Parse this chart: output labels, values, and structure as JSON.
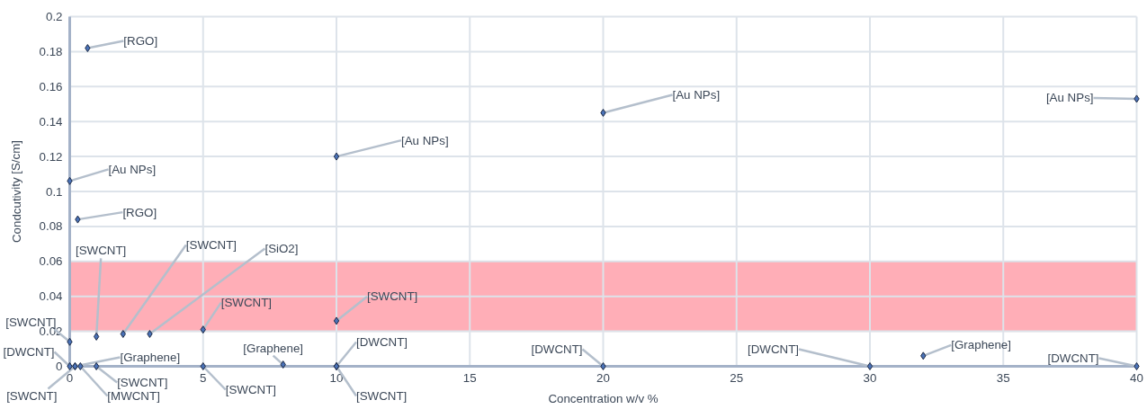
{
  "chart_data": {
    "type": "scatter",
    "xlabel": "Concentration w/v %",
    "ylabel": "Condcutivity [S/cm]",
    "x": [
      0.67,
      0,
      0.3,
      1,
      2,
      3,
      5,
      10,
      10,
      20,
      40,
      0,
      0,
      0.2,
      0.2,
      0.4,
      1,
      5,
      8,
      10,
      10,
      20,
      30,
      32,
      40
    ],
    "series": [
      {
        "color": "#4a72b8",
        "values": [
          0.182,
          0.106,
          0.084,
          0.017,
          0.0185,
          0.0185,
          0.021,
          0.026,
          0.12,
          0.145,
          0.153,
          0.014,
          0,
          0,
          0,
          0,
          0,
          0,
          0.001,
          0,
          0,
          0,
          0,
          0.006,
          0
        ]
      }
    ],
    "annotations": [
      {
        "text": "[RGO]",
        "x": 0.67,
        "y": 0.182
      },
      {
        "text": "[Au NPs]",
        "x": 0,
        "y": 0.106
      },
      {
        "text": "[RGO]",
        "x": 0.3,
        "y": 0.084
      },
      {
        "text": "[SWCNT]",
        "x": 1,
        "y": 0.017
      },
      {
        "text": "[SWCNT]",
        "x": 2,
        "y": 0.0185
      },
      {
        "text": "[SiO2]",
        "x": 3,
        "y": 0.0185
      },
      {
        "text": "[SWCNT]",
        "x": 5,
        "y": 0.021
      },
      {
        "text": "[SWCNT]",
        "x": 10,
        "y": 0.026
      },
      {
        "text": "[Au NPs]",
        "x": 10,
        "y": 0.12
      },
      {
        "text": "[Au NPs]",
        "x": 20,
        "y": 0.145
      },
      {
        "text": "[Au NPs]",
        "x": 40,
        "y": 0.153
      },
      {
        "text": "[SWCNT]",
        "x": 0,
        "y": 0.014
      },
      {
        "text": "[DWCNT]",
        "x": 0,
        "y": 0
      },
      {
        "text": "[SWCNT]",
        "x": 0.2,
        "y": 0
      },
      {
        "text": "[Graphene]",
        "x": 0.2,
        "y": 0
      },
      {
        "text": "[MWCNT]",
        "x": 0.4,
        "y": 0
      },
      {
        "text": "[SWCNT]",
        "x": 1,
        "y": 0
      },
      {
        "text": "[SWCNT]",
        "x": 5,
        "y": 0
      },
      {
        "text": "[Graphene]",
        "x": 8,
        "y": 0.001
      },
      {
        "text": "[DWCNT]",
        "x": 10,
        "y": 0
      },
      {
        "text": "[SWCNT]",
        "x": 10,
        "y": 0
      },
      {
        "text": "[DWCNT]",
        "x": 20,
        "y": 0
      },
      {
        "text": "[DWCNT]",
        "x": 30,
        "y": 0
      },
      {
        "text": "[Graphene]",
        "x": 32,
        "y": 0.006
      },
      {
        "text": "[DWCNT]",
        "x": 40,
        "y": 0
      }
    ],
    "bands": [
      {
        "axis": "y",
        "from": 0.02,
        "to": 0.06,
        "color": "#ff9aa5"
      }
    ],
    "xlim": [
      0,
      40
    ],
    "xticks": [
      0,
      5,
      10,
      15,
      20,
      25,
      30,
      35,
      40
    ],
    "ylim": [
      0,
      0.2
    ],
    "yticks": [
      0,
      0.02,
      0.04,
      0.06,
      0.08,
      0.1,
      0.12,
      0.14,
      0.16,
      0.18,
      0.2
    ],
    "grid": true,
    "marker": "diamond"
  }
}
